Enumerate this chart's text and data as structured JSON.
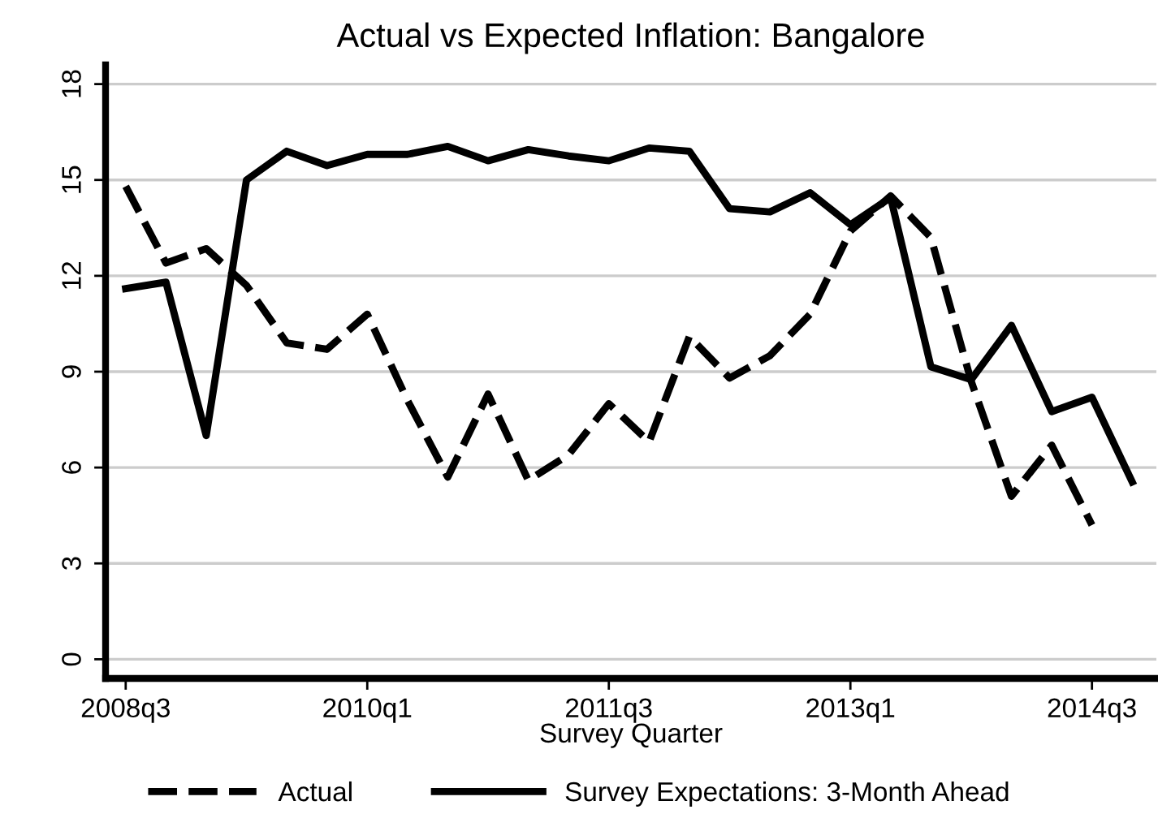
{
  "chart_data": {
    "type": "line",
    "title": "Actual vs Expected Inflation: Bangalore",
    "xlabel": "Survey Quarter",
    "categories": [
      "2008q3",
      null,
      null,
      null,
      null,
      null,
      "2010q1",
      null,
      null,
      null,
      null,
      null,
      "2011q3",
      null,
      null,
      null,
      null,
      null,
      "2013q1",
      null,
      null,
      null,
      null,
      null,
      "2014q3",
      null
    ],
    "ylim": [
      -0.6,
      18.6
    ],
    "yticks": [
      0,
      3,
      6,
      9,
      12,
      15,
      18
    ],
    "grid": "y",
    "legend": "bottom",
    "marker": "none",
    "series": [
      {
        "name": "Actual",
        "color": "#000000",
        "line_style": "dashed",
        "values": [
          14.8,
          12.4,
          12.85,
          11.7,
          9.9,
          9.7,
          10.8,
          8.1,
          5.7,
          8.3,
          5.6,
          6.4,
          8.0,
          6.8,
          10.1,
          8.8,
          9.5,
          10.8,
          13.4,
          14.5,
          13.2,
          8.7,
          5.1,
          6.7,
          4.2,
          null
        ]
      },
      {
        "name": "Survey Expectations: 3-Month Ahead",
        "color": "#000000",
        "line_style": "solid",
        "values": [
          11.6,
          11.8,
          7.0,
          15.0,
          15.9,
          15.45,
          15.8,
          15.8,
          16.05,
          15.6,
          15.95,
          15.75,
          15.6,
          16.0,
          15.9,
          14.1,
          14.0,
          14.6,
          13.6,
          14.45,
          9.15,
          8.75,
          10.45,
          7.75,
          8.2,
          5.55
        ]
      }
    ]
  }
}
